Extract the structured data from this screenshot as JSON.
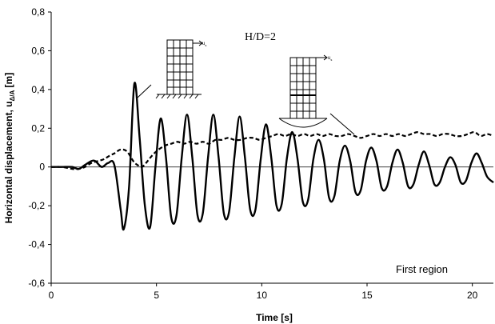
{
  "chart_data": {
    "type": "line",
    "xlabel": "Time [s]",
    "ylabel_main": "Horizontal displacement, u",
    "ylabel_sub": "Δ/A",
    "ylabel_unit": "[m]",
    "xlim": [
      0,
      21
    ],
    "ylim": [
      -0.6,
      0.8
    ],
    "xticks": [
      0,
      5,
      10,
      15,
      20
    ],
    "xtick_labels": [
      "0",
      "5",
      "10",
      "15",
      "20"
    ],
    "yticks": [
      -0.6,
      -0.4,
      -0.2,
      0,
      0.2,
      0.4,
      0.6,
      0.8
    ],
    "ytick_labels": [
      "-0,6",
      "-0,4",
      "-0,2",
      "0",
      "0,2",
      "0,4",
      "0,6",
      "0,8"
    ],
    "annotation": "H/D=2",
    "region_label": "First region",
    "inset_fixed_label": "u",
    "inset_fixed_sub": "s",
    "inset_flex_label": "u",
    "inset_flex_sub": "s",
    "series": [
      {
        "style": "solid",
        "x": [
          0,
          0.5,
          1.0,
          1.3,
          1.6,
          1.9,
          2.1,
          2.4,
          2.7,
          3.0,
          3.3,
          3.45,
          3.7,
          3.95,
          4.2,
          4.45,
          4.7,
          4.95,
          5.2,
          5.45,
          5.7,
          5.95,
          6.2,
          6.45,
          6.7,
          6.95,
          7.2,
          7.45,
          7.7,
          7.95,
          8.2,
          8.45,
          8.7,
          8.95,
          9.2,
          9.45,
          9.7,
          9.95,
          10.2,
          10.45,
          10.7,
          10.95,
          11.2,
          11.45,
          11.7,
          11.95,
          12.2,
          12.45,
          12.7,
          12.95,
          13.2,
          13.45,
          13.7,
          13.95,
          14.2,
          14.45,
          14.7,
          14.95,
          15.2,
          15.45,
          15.7,
          15.95,
          16.2,
          16.45,
          16.7,
          16.95,
          17.2,
          17.45,
          17.7,
          17.95,
          18.2,
          18.45,
          18.7,
          18.95,
          19.2,
          19.45,
          19.7,
          19.95,
          20.2,
          20.45,
          20.7,
          21.0
        ],
        "y": [
          0,
          0.0,
          0.0,
          -0.01,
          0.01,
          0.03,
          0.03,
          0.0,
          0.02,
          0.01,
          -0.22,
          -0.32,
          -0.1,
          0.43,
          0.15,
          -0.2,
          -0.31,
          0.0,
          0.25,
          0.05,
          -0.26,
          -0.25,
          0.05,
          0.27,
          0.05,
          -0.25,
          -0.24,
          0.05,
          0.27,
          0.05,
          -0.24,
          -0.23,
          0.05,
          0.26,
          0.05,
          -0.22,
          -0.22,
          0.04,
          0.22,
          0.05,
          -0.2,
          -0.19,
          0.05,
          0.18,
          0.04,
          -0.18,
          -0.17,
          0.04,
          0.14,
          0.04,
          -0.16,
          -0.15,
          0.03,
          0.11,
          0.03,
          -0.13,
          -0.12,
          0.03,
          0.1,
          0.03,
          -0.11,
          -0.1,
          0.02,
          0.09,
          0.02,
          -0.1,
          -0.09,
          0.01,
          0.08,
          0.01,
          -0.09,
          -0.08,
          0.0,
          0.05,
          0.01,
          -0.08,
          -0.07,
          0.02,
          0.07,
          0.02,
          -0.05,
          -0.08
        ]
      },
      {
        "style": "dashed",
        "x": [
          0,
          0.5,
          1.0,
          1.3,
          1.6,
          1.9,
          2.2,
          2.5,
          2.8,
          3.0,
          3.3,
          3.6,
          3.9,
          4.1,
          4.3,
          4.5,
          4.8,
          5.1,
          5.4,
          5.7,
          6.0,
          6.3,
          6.6,
          6.9,
          7.2,
          7.5,
          7.8,
          8.1,
          8.4,
          8.7,
          9.0,
          9.3,
          9.6,
          9.9,
          10.2,
          10.5,
          10.8,
          11.1,
          11.4,
          11.7,
          12.0,
          12.3,
          12.6,
          12.9,
          13.2,
          13.5,
          13.8,
          14.1,
          14.4,
          14.7,
          15.0,
          15.3,
          15.6,
          15.9,
          16.2,
          16.5,
          16.8,
          17.1,
          17.4,
          17.7,
          18.0,
          18.3,
          18.6,
          18.9,
          19.2,
          19.5,
          19.8,
          20.1,
          20.4,
          20.7,
          21.0
        ],
        "y": [
          0,
          0.0,
          -0.01,
          -0.01,
          0.0,
          0.02,
          0.03,
          0.04,
          0.06,
          0.07,
          0.09,
          0.08,
          0.03,
          0.01,
          0.0,
          0.02,
          0.06,
          0.09,
          0.11,
          0.12,
          0.13,
          0.12,
          0.13,
          0.12,
          0.13,
          0.12,
          0.14,
          0.14,
          0.15,
          0.14,
          0.14,
          0.15,
          0.15,
          0.14,
          0.15,
          0.16,
          0.17,
          0.16,
          0.17,
          0.16,
          0.17,
          0.16,
          0.17,
          0.16,
          0.17,
          0.16,
          0.16,
          0.17,
          0.16,
          0.15,
          0.16,
          0.17,
          0.16,
          0.17,
          0.16,
          0.17,
          0.16,
          0.17,
          0.18,
          0.17,
          0.17,
          0.16,
          0.17,
          0.17,
          0.16,
          0.16,
          0.17,
          0.18,
          0.16,
          0.17,
          0.16
        ]
      }
    ]
  }
}
